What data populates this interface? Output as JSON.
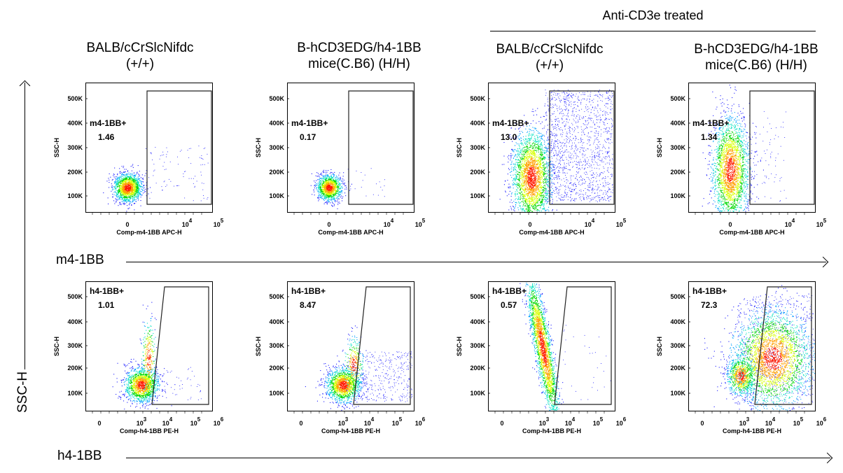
{
  "treatment_label": "Anti-CD3e treated",
  "column_headers": [
    {
      "line1": "BALB/cCrSlcNifdc",
      "line2": "(+/+)"
    },
    {
      "line1": "B-hCD3EDG/h4-1BB",
      "line2": "mice(C.B6) (H/H)"
    },
    {
      "line1": "BALB/cCrSlcNifdc",
      "line2": "(+/+)"
    },
    {
      "line1": "B-hCD3EDG/h4-1BB",
      "line2": "mice(C.B6) (H/H)"
    }
  ],
  "row_axis_labels": [
    "m4-1BB",
    "h4-1BB"
  ],
  "y_axis_label": "SSC-H",
  "colors": {
    "low": "#1a1aff",
    "mid": "#00d800",
    "high": "#ff2000"
  },
  "chart_data": [
    {
      "type": "scatter",
      "title": "",
      "xlabel": "Comp-m4-1BB APC-H",
      "ylabel": "SSC-H",
      "yticks": [
        "100K",
        "200K",
        "300K",
        "400K",
        "500K"
      ],
      "xticks": [
        {
          "base": "0",
          "exp": ""
        },
        {
          "base": "10",
          "exp": "4"
        },
        {
          "base": "10",
          "exp": "5"
        }
      ],
      "panels": [
        {
          "gate": "m4-1BB+",
          "value": "1.46"
        },
        {
          "gate": "m4-1BB+",
          "value": "0.17"
        },
        {
          "gate": "m4-1BB+",
          "value": "13.0"
        },
        {
          "gate": "m4-1BB+",
          "value": "1.34"
        }
      ]
    },
    {
      "type": "scatter",
      "title": "",
      "xlabel": "Comp-h4-1BB PE-H",
      "ylabel": "SSC-H",
      "yticks": [
        "100K",
        "200K",
        "300K",
        "400K",
        "500K"
      ],
      "xticks": [
        {
          "base": "0",
          "exp": ""
        },
        {
          "base": "10",
          "exp": "3"
        },
        {
          "base": "10",
          "exp": "4"
        },
        {
          "base": "10",
          "exp": "5"
        },
        {
          "base": "10",
          "exp": "6"
        }
      ],
      "panels": [
        {
          "gate": "h4-1BB+",
          "value": "1.01"
        },
        {
          "gate": "h4-1BB+",
          "value": "8.47"
        },
        {
          "gate": "h4-1BB+",
          "value": "0.57"
        },
        {
          "gate": "h4-1BB+",
          "value": "72.3"
        }
      ]
    }
  ]
}
